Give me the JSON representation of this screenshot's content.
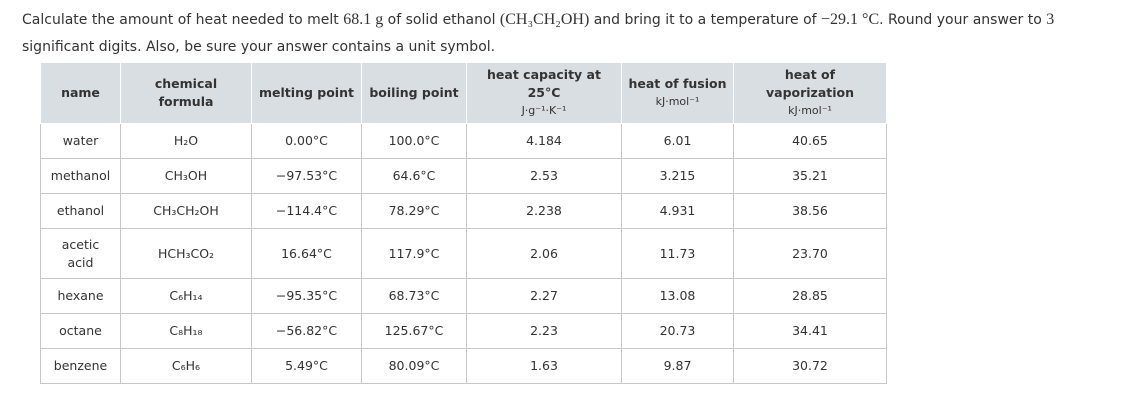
{
  "question": [
    {
      "text": "Calculate the amount of heat needed to melt "
    },
    {
      "text": "68.1 g",
      "serif": true
    },
    {
      "text": " of solid ethanol "
    },
    {
      "text": "(CH₃CH₂OH)",
      "serif": true
    },
    {
      "text": " and bring it to a temperature of "
    },
    {
      "text": "−29.1 °C",
      "serif": true
    },
    {
      "text": ". Round your answer to "
    },
    {
      "text": "3",
      "serif": true
    },
    {
      "text": " significant digits. Also, be sure your answer contains a unit symbol."
    }
  ],
  "table": {
    "headers": [
      {
        "title": "name"
      },
      {
        "title": "chemical formula"
      },
      {
        "title": "melting point"
      },
      {
        "title": "boiling point"
      },
      {
        "title": "heat capacity at 25°C",
        "unit": "J·g⁻¹·K⁻¹"
      },
      {
        "title": "heat of fusion",
        "unit": "kJ·mol⁻¹"
      },
      {
        "title": "heat of vaporization",
        "unit": "kJ·mol⁻¹"
      }
    ],
    "rows": [
      [
        "water",
        "H₂O",
        "0.00°C",
        "100.0°C",
        "4.184",
        "6.01",
        "40.65"
      ],
      [
        "methanol",
        "CH₃OH",
        "−97.53°C",
        "64.6°C",
        "2.53",
        "3.215",
        "35.21"
      ],
      [
        "ethanol",
        "CH₃CH₂OH",
        "−114.4°C",
        "78.29°C",
        "2.238",
        "4.931",
        "38.56"
      ],
      [
        "acetic acid",
        "HCH₃CO₂",
        "16.64°C",
        "117.9°C",
        "2.06",
        "11.73",
        "23.70"
      ],
      [
        "hexane",
        "C₆H₁₄",
        "−95.35°C",
        "68.73°C",
        "2.27",
        "13.08",
        "28.85"
      ],
      [
        "octane",
        "C₈H₁₈",
        "−56.82°C",
        "125.67°C",
        "2.23",
        "20.73",
        "34.41"
      ],
      [
        "benzene",
        "C₆H₆",
        "5.49°C",
        "80.09°C",
        "1.63",
        "9.87",
        "30.72"
      ]
    ]
  }
}
